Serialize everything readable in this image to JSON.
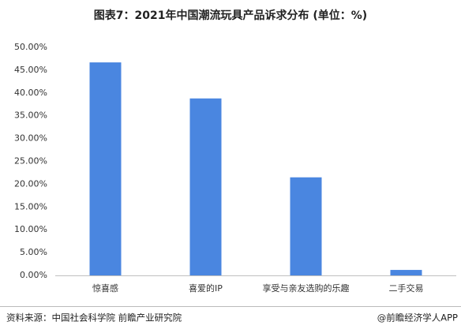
{
  "chart_data": {
    "type": "bar",
    "title": "图表7：2021年中国潮流玩具产品诉求分布 (单位：%)",
    "categories": [
      "惊喜感",
      "喜爱的IP",
      "享受与亲友选购的乐趣",
      "二手交易"
    ],
    "values": [
      46.7,
      38.8,
      21.5,
      1.2
    ],
    "color": "#4a86e0",
    "ylim": [
      0,
      50
    ],
    "yticks": [
      {
        "value": 0,
        "label": "0.00%"
      },
      {
        "value": 5,
        "label": "5.00%"
      },
      {
        "value": 10,
        "label": "10.00%"
      },
      {
        "value": 15,
        "label": "15.00%"
      },
      {
        "value": 20,
        "label": "20.00%"
      },
      {
        "value": 25,
        "label": "25.00%"
      },
      {
        "value": 30,
        "label": "30.00%"
      },
      {
        "value": 35,
        "label": "35.00%"
      },
      {
        "value": 40,
        "label": "40.00%"
      },
      {
        "value": 45,
        "label": "45.00%"
      },
      {
        "value": 50,
        "label": "50.00%"
      }
    ],
    "grid": false,
    "source": "资料来源：中国社会科学院 前瞻产业研究院",
    "credit": "@前瞻经济学人APP"
  }
}
